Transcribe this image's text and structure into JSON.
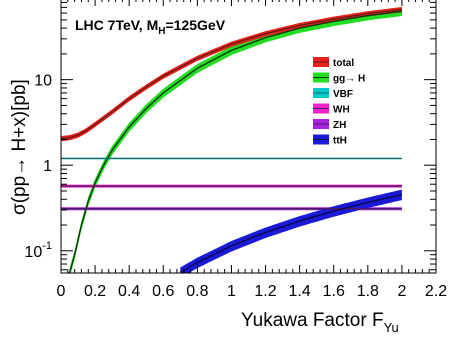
{
  "chart_data": {
    "type": "line",
    "annotation": {
      "prefix": "LHC 7TeV, M",
      "sub": "H",
      "suffix": "=125GeV"
    },
    "xlabel": {
      "main": "Yukawa Factor  F",
      "sub": "Yu"
    },
    "ylabel": "σ(pp→ H+x)[pb]",
    "xlim": [
      0,
      2.2
    ],
    "ylim": [
      0.055,
      90
    ],
    "yscale": "log",
    "xticks": [
      0,
      0.2,
      0.4,
      0.6,
      0.8,
      1,
      1.2,
      1.4,
      1.6,
      1.8,
      2,
      2.2
    ],
    "xtick_labels": [
      "0",
      "0.2",
      "0.4",
      "0.6",
      "0.8",
      "1",
      "1.2",
      "1.4",
      "1.6",
      "1.8",
      "2",
      "2.2"
    ],
    "yticks": [
      {
        "value": 10,
        "label": "10"
      },
      {
        "value": 1,
        "label": "1"
      },
      {
        "value": 0.1,
        "label": "10",
        "sup": "-1"
      }
    ],
    "series": [
      {
        "name": "total",
        "color": "#e8201a",
        "line": "#6b1a14",
        "x": [
          0,
          0.05,
          0.1,
          0.15,
          0.2,
          0.3,
          0.4,
          0.5,
          0.6,
          0.8,
          1.0,
          1.2,
          1.4,
          1.6,
          1.8,
          2.0
        ],
        "y": [
          2.05,
          2.1,
          2.25,
          2.55,
          3.0,
          4.2,
          6.0,
          8.2,
          11.0,
          17.8,
          26.0,
          34.5,
          43.0,
          51.0,
          59.0,
          66.0
        ],
        "band_frac": 0.07
      },
      {
        "name": "gg→ H",
        "color": "#22dd22",
        "line": "#0a3a0a",
        "x": [
          0.05,
          0.08,
          0.12,
          0.16,
          0.2,
          0.25,
          0.3,
          0.4,
          0.5,
          0.6,
          0.8,
          1.0,
          1.2,
          1.4,
          1.6,
          1.8,
          2.0
        ],
        "y": [
          0.055,
          0.09,
          0.2,
          0.38,
          0.62,
          1.0,
          1.5,
          2.8,
          4.6,
          7.0,
          13.6,
          22.0,
          31.0,
          40.0,
          48.0,
          56.0,
          63.0
        ],
        "band_frac": 0.12
      },
      {
        "name": "VBF",
        "color": "#00cccc",
        "line": "#1a6a6a",
        "x": [
          0,
          2.0
        ],
        "y": [
          1.2,
          1.2
        ],
        "band_frac": 0.02
      },
      {
        "name": "WH",
        "color": "#ee22cc",
        "line": "#5a1a5a",
        "x": [
          0,
          2.0
        ],
        "y": [
          0.57,
          0.57
        ],
        "band_frac": 0.04
      },
      {
        "name": "ZH",
        "color": "#aa22dd",
        "line": "#4a1a6a",
        "x": [
          0,
          2.0
        ],
        "y": [
          0.31,
          0.31
        ],
        "band_frac": 0.04
      },
      {
        "name": "ttH",
        "color": "#1a1ad8",
        "line": "#0a0a4a",
        "x": [
          0.7,
          0.8,
          1.0,
          1.2,
          1.4,
          1.6,
          1.8,
          2.0
        ],
        "y": [
          0.056,
          0.073,
          0.114,
          0.164,
          0.223,
          0.291,
          0.368,
          0.455
        ],
        "band_frac": 0.14
      }
    ],
    "legend_position": "top-right",
    "grid": false
  }
}
